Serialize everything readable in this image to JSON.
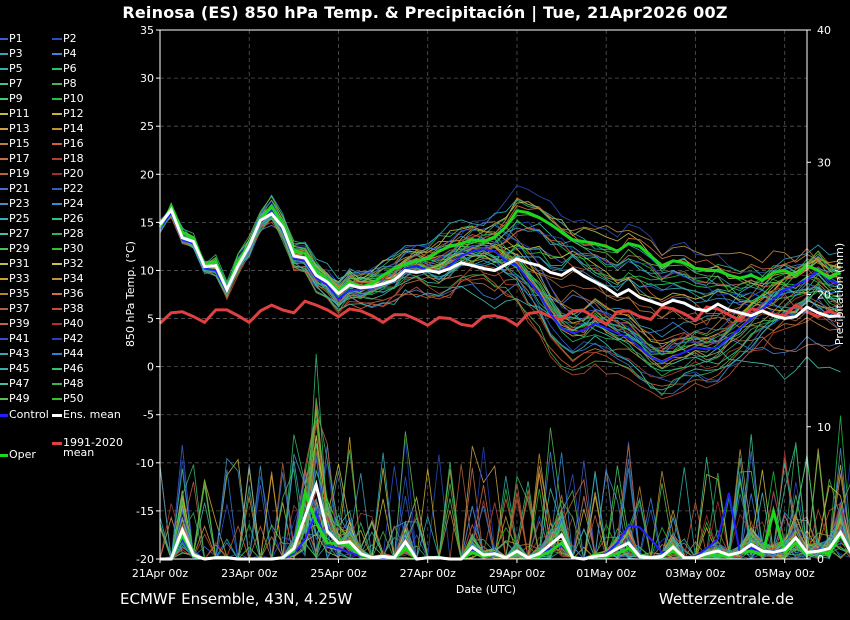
{
  "title": "Reinosa  (ES)  850 hPa Temp. & Precipitación | Tue, 21Apr2026 00Z",
  "footer": {
    "source": "ECMWF Ensemble, 43N, 4.25W",
    "brand": "Wetterzentrale.de"
  },
  "colors": {
    "background": "#000000",
    "grid": "#555555",
    "ens_mean": "#ffffff",
    "oper": "#1fd61f",
    "control": "#2020ff",
    "clim": "#e04040"
  },
  "legend": {
    "members": [
      "P1",
      "P2",
      "P3",
      "P4",
      "P5",
      "P6",
      "P7",
      "P8",
      "P9",
      "P10",
      "P11",
      "P12",
      "P13",
      "P14",
      "P15",
      "P16",
      "P17",
      "P18",
      "P19",
      "P20",
      "P21",
      "P22",
      "P23",
      "P24",
      "P25",
      "P26",
      "P27",
      "P28",
      "P29",
      "P30",
      "P31",
      "P32",
      "P33",
      "P34",
      "P35",
      "P36",
      "P37",
      "P38",
      "P39",
      "P40",
      "P41",
      "P42",
      "P43",
      "P44",
      "P45",
      "P46",
      "P47",
      "P48",
      "P49",
      "P50"
    ],
    "member_colors": [
      "#3a5fd0",
      "#2a4fc0",
      "#3aa0c0",
      "#4080e0",
      "#30b0b0",
      "#30c060",
      "#40c0a0",
      "#50b050",
      "#40d060",
      "#20c040",
      "#c0c040",
      "#d0b030",
      "#d0a040",
      "#c09030",
      "#c08040",
      "#d06030",
      "#c07050",
      "#b04030",
      "#c06040",
      "#a03030",
      "#4070d0",
      "#3060c0",
      "#4090c0",
      "#3090d0",
      "#30b0c0",
      "#30c080",
      "#40c0b0",
      "#30b060",
      "#50c050",
      "#30c030",
      "#c0c050",
      "#d0c040",
      "#d0a030",
      "#c09040",
      "#c08030",
      "#d07040",
      "#b06040",
      "#c05030",
      "#c06050",
      "#b03030",
      "#3050d0",
      "#2040c0",
      "#40a0c0",
      "#3080d0",
      "#30b0b0",
      "#30c070",
      "#40c0a0",
      "#40b050",
      "#60c040",
      "#30c030"
    ],
    "control": "Control",
    "ens_mean": "Ens. mean",
    "oper": "Oper",
    "clim_line1": "1991-2020",
    "clim_line2": "mean"
  },
  "chart_data": {
    "type": "line",
    "x_ticks": [
      "21Apr 00z",
      "23Apr 00z",
      "25Apr 00z",
      "27Apr 00z",
      "29Apr 00z",
      "01May 00z",
      "03May 00z",
      "05May 00z"
    ],
    "x_tick_days": [
      0,
      2,
      4,
      6,
      8,
      10,
      12,
      14
    ],
    "x_range_days": [
      0,
      14.5
    ],
    "xlabel": "Date (UTC)",
    "ylabel_left": "850 hPa Temp. (°C)",
    "ylabel_right": "Precipitation (mm)",
    "ylim_left": [
      -20,
      35
    ],
    "y_ticks_left": [
      -20,
      -15,
      -10,
      -5,
      0,
      5,
      10,
      15,
      20,
      25,
      30,
      35
    ],
    "ylim_right": [
      0,
      40
    ],
    "y_ticks_right": [
      0,
      10,
      20,
      30,
      40
    ],
    "grid": true,
    "step_days": 0.25,
    "ens_mean_temp": [
      14.8,
      16.3,
      13.4,
      13.0,
      10.4,
      10.5,
      8.0,
      10.5,
      12.5,
      15.2,
      15.9,
      14.5,
      11.5,
      11.3,
      9.5,
      8.8,
      7.6,
      8.5,
      8.2,
      8.3,
      8.6,
      9.0,
      10.0,
      9.8,
      10.0,
      9.8,
      10.2,
      10.8,
      10.5,
      10.2,
      10.0,
      10.6,
      11.2,
      10.8,
      10.5,
      9.8,
      9.5,
      10.2,
      9.4,
      8.8,
      8.2,
      7.4,
      8.0,
      7.2,
      6.8,
      6.4,
      6.9,
      6.6,
      6.0,
      5.8,
      6.5,
      5.9,
      5.6,
      5.3,
      5.8,
      5.3,
      5.0,
      5.2,
      6.2,
      5.6,
      5.2,
      5.3
    ],
    "oper_temp": [
      14.5,
      16.6,
      14.0,
      13.3,
      10.6,
      10.9,
      8.0,
      11.0,
      12.7,
      15.3,
      16.7,
      14.8,
      12.0,
      11.8,
      10.0,
      9.0,
      7.8,
      8.8,
      8.3,
      8.6,
      9.5,
      10.2,
      10.6,
      11.0,
      11.2,
      12.0,
      12.5,
      12.8,
      13.2,
      13.0,
      13.5,
      14.5,
      16.2,
      16.0,
      15.5,
      14.8,
      14.0,
      13.2,
      13.0,
      12.8,
      12.5,
      12.0,
      12.8,
      12.5,
      11.5,
      10.5,
      11.0,
      10.8,
      10.2,
      10.0,
      10.0,
      9.5,
      9.2,
      9.5,
      9.0,
      9.8,
      10.0,
      9.5,
      10.5,
      10.0,
      9.2,
      9.8
    ],
    "control_temp": [
      14.3,
      16.0,
      13.2,
      12.8,
      10.2,
      10.0,
      7.8,
      10.4,
      12.4,
      15.0,
      16.2,
      14.2,
      11.2,
      11.0,
      9.2,
      8.5,
      7.0,
      8.0,
      8.0,
      8.2,
      8.5,
      9.0,
      10.2,
      10.5,
      10.0,
      9.8,
      10.5,
      11.5,
      12.0,
      12.2,
      12.0,
      11.0,
      10.5,
      9.0,
      7.5,
      5.5,
      4.0,
      3.5,
      3.8,
      4.5,
      4.0,
      3.5,
      3.0,
      2.0,
      1.0,
      0.5,
      1.0,
      1.5,
      2.0,
      1.8,
      2.0,
      3.0,
      4.0,
      5.0,
      6.0,
      7.0,
      8.0,
      8.5,
      9.0,
      10.0,
      9.0,
      8.5
    ],
    "clim_temp": [
      4.5,
      5.6,
      5.7,
      5.2,
      4.6,
      5.9,
      5.9,
      5.3,
      4.6,
      5.8,
      6.4,
      5.9,
      5.6,
      6.8,
      6.4,
      5.9,
      5.2,
      6.0,
      5.8,
      5.3,
      4.6,
      5.4,
      5.4,
      4.9,
      4.3,
      5.1,
      5.0,
      4.4,
      4.2,
      5.2,
      5.3,
      5.0,
      4.3,
      5.5,
      5.7,
      5.2,
      4.9,
      5.8,
      5.8,
      5.1,
      4.4,
      5.7,
      5.8,
      5.2,
      4.9,
      6.2,
      6.0,
      5.5,
      4.8,
      6.2,
      6.0,
      5.4,
      4.8,
      6.0,
      5.8,
      5.4,
      5.3,
      6.4,
      5.7,
      5.2,
      5.8,
      5.3
    ],
    "ens_mean_precip": [
      0,
      0,
      2.2,
      0.3,
      0,
      0.1,
      0.1,
      0,
      0,
      0,
      0,
      0.1,
      0.8,
      3.2,
      5.6,
      2.1,
      1.2,
      1.3,
      0.4,
      0.1,
      0.2,
      0.1,
      1.3,
      0,
      0.1,
      0.1,
      0,
      0,
      0.9,
      0.3,
      0.4,
      0.1,
      0.6,
      0.1,
      0.4,
      1.1,
      1.8,
      0.1,
      0,
      0.2,
      0.3,
      0.8,
      1.2,
      0.2,
      0.1,
      0.2,
      0.9,
      0.1,
      0.1,
      0.4,
      0.6,
      0.3,
      0.5,
      1.1,
      0.6,
      0.5,
      0.7,
      1.6,
      0.5,
      0.6,
      0.8,
      2.0,
      0.4
    ],
    "oper_precip": [
      0,
      0,
      1.8,
      0.2,
      0,
      0.1,
      0.1,
      0,
      0,
      0,
      0,
      0.1,
      0.6,
      5.0,
      2.8,
      1.2,
      1.2,
      1.0,
      0.3,
      0.1,
      0.2,
      0.1,
      0.8,
      0,
      0.1,
      0.1,
      0,
      0,
      0.5,
      0.2,
      0.4,
      0.1,
      0.5,
      0.1,
      0.2,
      0.6,
      1.2,
      0.1,
      0,
      0.3,
      0.2,
      0.4,
      0.8,
      0.2,
      0.1,
      0.2,
      0.6,
      0.1,
      0.1,
      0.3,
      0.3,
      0.2,
      0.5,
      0.6,
      0.3,
      3.6,
      0.5,
      1.2,
      0.3,
      0.6,
      0.4,
      1.8,
      0.4
    ],
    "control_precip": [
      0,
      0,
      1.5,
      0.1,
      0,
      0.1,
      0.1,
      0,
      0,
      0,
      0,
      0,
      0.4,
      1.5,
      3.5,
      1.0,
      0.8,
      0.5,
      0.2,
      0.1,
      0.1,
      0.1,
      0.8,
      0,
      0.1,
      0.1,
      0,
      0,
      0.6,
      0.3,
      0.5,
      0.1,
      0.5,
      0.1,
      0.3,
      0.8,
      1.0,
      0.1,
      0.1,
      0.3,
      0.4,
      1.2,
      2.5,
      2.4,
      1.5,
      0.5,
      0.6,
      0.2,
      0.2,
      0.8,
      1.5,
      5.0,
      0.4,
      0.8,
      0.6,
      0.4,
      0.7,
      1.2,
      0.5,
      0.7,
      0.8,
      2.0,
      0.5
    ]
  }
}
